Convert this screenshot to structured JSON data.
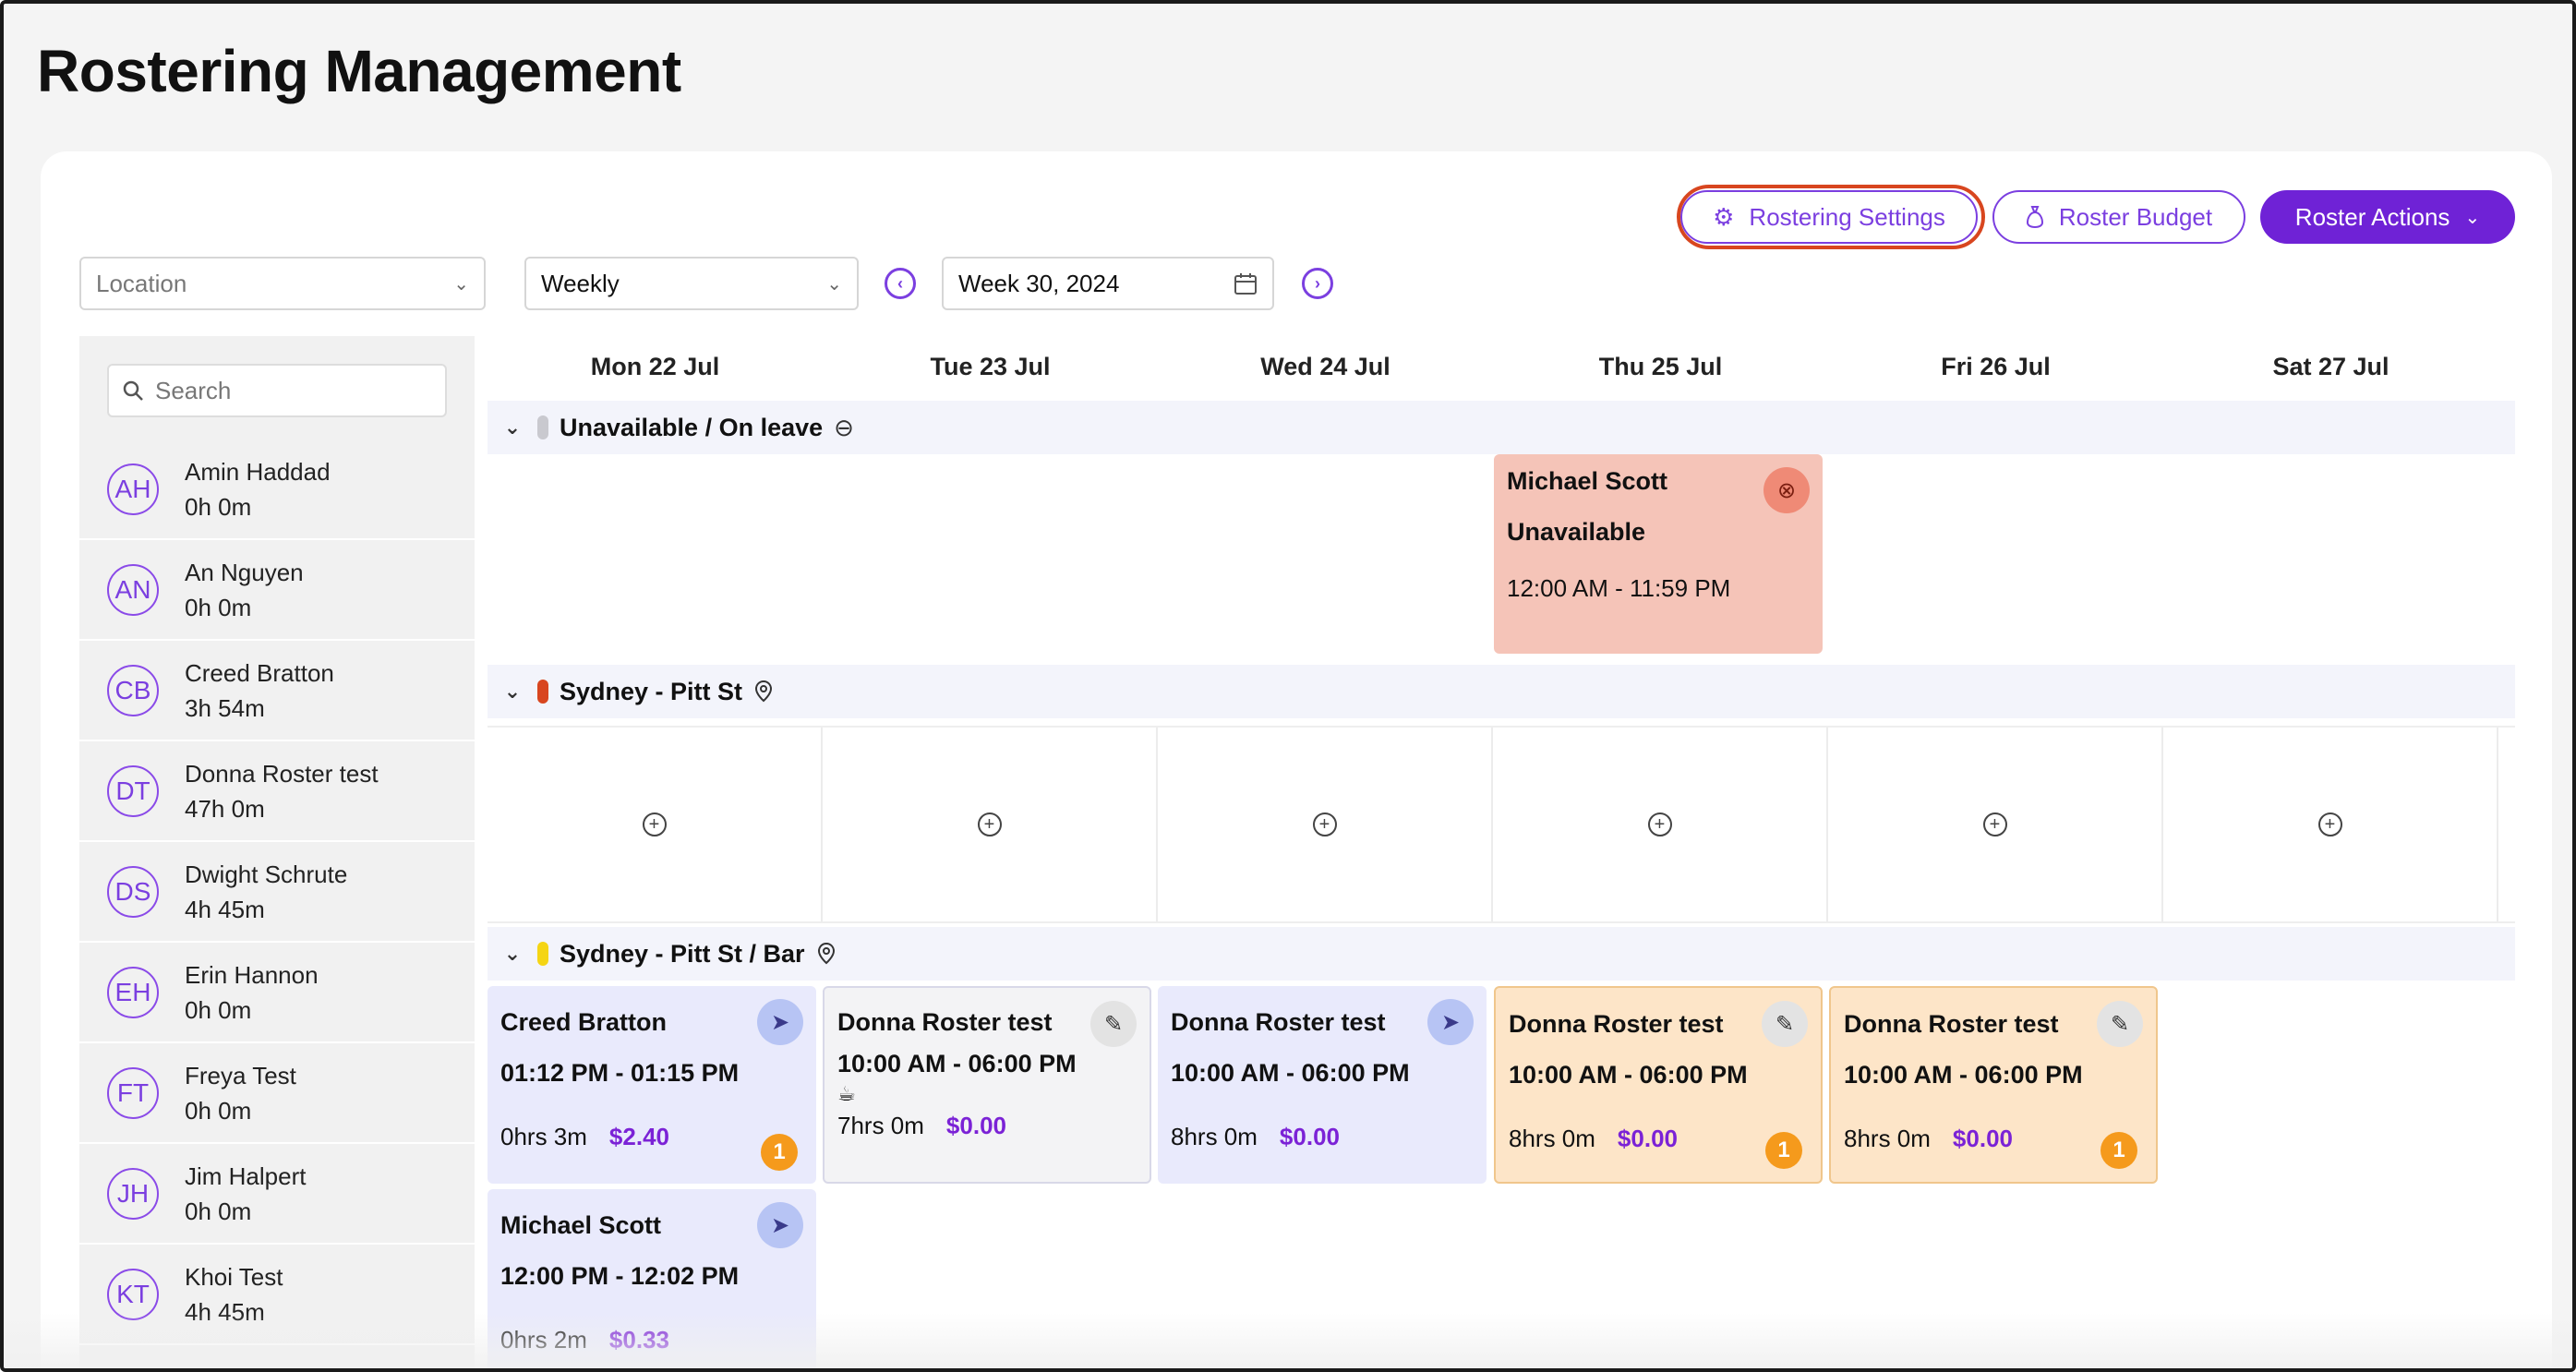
{
  "page": {
    "title": "Rostering Management"
  },
  "toolbar": {
    "settings_label": "Rostering Settings",
    "settings_icon": "gear-icon",
    "budget_label": "Roster Budget",
    "budget_icon": "money-bag-icon",
    "actions_label": "Roster Actions",
    "accent_color": "#6f22d6",
    "highlight_color": "#d8461f"
  },
  "filters": {
    "location_placeholder": "Location",
    "view_value": "Weekly",
    "week_value": "Week 30, 2024"
  },
  "search": {
    "placeholder": "Search"
  },
  "staff": [
    {
      "initials": "AH",
      "name": "Amin Haddad",
      "hours": "0h 0m"
    },
    {
      "initials": "AN",
      "name": "An Nguyen",
      "hours": "0h 0m"
    },
    {
      "initials": "CB",
      "name": "Creed Bratton",
      "hours": "3h 54m"
    },
    {
      "initials": "DT",
      "name": "Donna Roster test",
      "hours": "47h 0m"
    },
    {
      "initials": "DS",
      "name": "Dwight Schrute",
      "hours": "4h 45m"
    },
    {
      "initials": "EH",
      "name": "Erin Hannon",
      "hours": "0h 0m"
    },
    {
      "initials": "FT",
      "name": "Freya Test",
      "hours": "0h 0m"
    },
    {
      "initials": "JH",
      "name": "Jim Halpert",
      "hours": "0h 0m"
    },
    {
      "initials": "KT",
      "name": "Khoi Test",
      "hours": "4h 45m"
    }
  ],
  "days": [
    "Mon 22 Jul",
    "Tue 23 Jul",
    "Wed 24 Jul",
    "Thu 25 Jul",
    "Fri 26 Jul",
    "Sat 27 Jul"
  ],
  "groups": {
    "unavailable": {
      "label": "Unavailable / On leave",
      "color": "#c9c9cf"
    },
    "pitt": {
      "label": "Sydney - Pitt St",
      "color": "#d8461f"
    },
    "bar": {
      "label": "Sydney - Pitt St / Bar",
      "color": "#f5d514"
    }
  },
  "unavailable_tile": {
    "name": "Michael Scott",
    "status": "Unavailable",
    "time": "12:00 AM - 11:59 PM"
  },
  "shifts": [
    {
      "name": "Creed Bratton",
      "time": "01:12 PM - 01:15 PM",
      "duration": "0hrs 3m",
      "cost": "$2.40",
      "badge": "1",
      "icon": "send-icon"
    },
    {
      "name": "Donna Roster test",
      "time": "10:00 AM - 06:00 PM",
      "duration": "7hrs 0m",
      "cost": "$0.00",
      "icon": "edit-icon",
      "extra_icon": "coffee-cup-icon"
    },
    {
      "name": "Donna Roster test",
      "time": "10:00 AM - 06:00 PM",
      "duration": "8hrs 0m",
      "cost": "$0.00",
      "icon": "send-icon"
    },
    {
      "name": "Donna Roster test",
      "time": "10:00 AM - 06:00 PM",
      "duration": "8hrs 0m",
      "cost": "$0.00",
      "badge": "1",
      "icon": "edit-icon"
    },
    {
      "name": "Donna Roster test",
      "time": "10:00 AM - 06:00 PM",
      "duration": "8hrs 0m",
      "cost": "$0.00",
      "badge": "1",
      "icon": "edit-icon"
    },
    {
      "name": "Michael Scott",
      "time": "12:00 PM - 12:02 PM",
      "duration": "0hrs 2m",
      "cost": "$0.33",
      "icon": "send-icon"
    }
  ]
}
